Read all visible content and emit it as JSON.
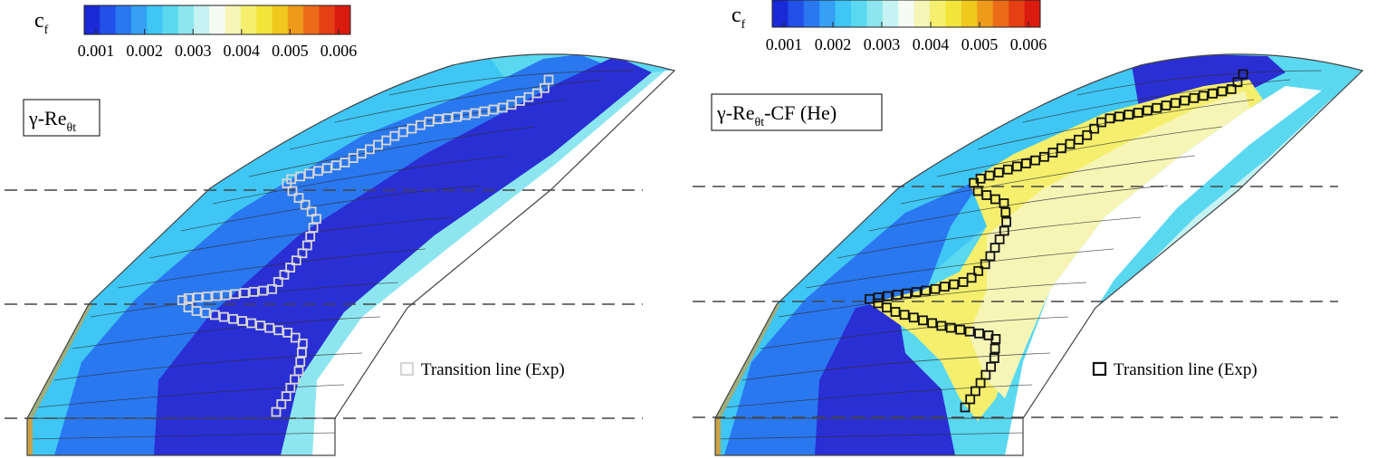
{
  "colorbar": {
    "symbol": "c",
    "symbol_sub": "f",
    "ticks": [
      "0.001",
      "0.002",
      "0.003",
      "0.004",
      "0.005",
      "0.006"
    ],
    "colors": [
      "#1a2ad6",
      "#2250e8",
      "#2a78f0",
      "#35a0f4",
      "#3fc6f4",
      "#5ad8f0",
      "#8de6ef",
      "#c7f2f3",
      "#f6fbf4",
      "#f6f5b6",
      "#f5ef6d",
      "#f3e43a",
      "#f0c81e",
      "#ee9a1a",
      "#ec6b18",
      "#e53f14",
      "#da1b10"
    ]
  },
  "panels": [
    {
      "model_label": {
        "main": "γ-Re",
        "sub": "θt",
        "suffix": ""
      },
      "legend": "Transition line (Exp)",
      "marker_color": "#d6d6d6"
    },
    {
      "model_label": {
        "main": "γ-Re",
        "sub": "θt",
        "suffix": "-CF (He)"
      },
      "legend": "Transition line (Exp)",
      "marker_color": "#111111"
    }
  ],
  "colors": {
    "dark_blue": "#2a2fd4",
    "mid_blue": "#2a78f0",
    "light_blue": "#3fc6f4",
    "cyan": "#6ad8f2",
    "white_band": "#ffffff",
    "yellow": "#f5ef6d",
    "gold_edge": "#c9a24a"
  }
}
